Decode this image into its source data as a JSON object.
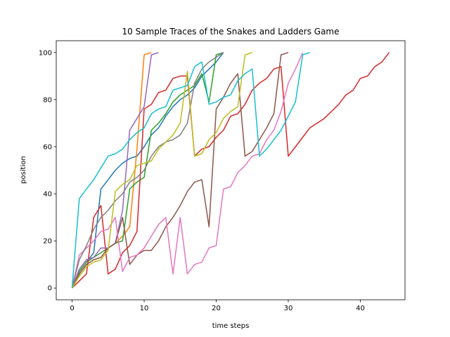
{
  "chart_data": {
    "type": "line",
    "title": "10 Sample Traces of the Snakes and Ladders Game",
    "xlabel": "time steps",
    "ylabel": "position",
    "xlim": [
      -2.2,
      46.2
    ],
    "ylim": [
      -5,
      105
    ],
    "xticks": [
      0,
      10,
      20,
      30,
      40
    ],
    "yticks": [
      0,
      20,
      40,
      60,
      80,
      100
    ],
    "grid": false,
    "legend": "none",
    "series": [
      {
        "color": "#1f77b4",
        "values": [
          0,
          7,
          11,
          15,
          42,
          46,
          50,
          53,
          55,
          56,
          60,
          65,
          68,
          73,
          77,
          80,
          82,
          85,
          90,
          93,
          96,
          100
        ]
      },
      {
        "color": "#ff7f0e",
        "values": [
          0,
          6,
          10,
          12,
          13,
          17,
          19,
          22,
          26,
          59,
          99,
          100
        ]
      },
      {
        "color": "#2ca02c",
        "values": [
          0,
          7,
          11,
          13,
          15,
          17,
          19,
          20,
          42,
          45,
          47,
          67,
          70,
          74,
          79,
          82,
          84,
          86,
          91,
          79,
          99,
          100
        ]
      },
      {
        "color": "#d62728",
        "values": [
          0,
          3,
          6,
          30,
          35,
          6,
          8,
          15,
          18,
          24,
          76,
          78,
          83,
          84,
          89,
          90,
          90,
          56,
          59,
          60,
          64,
          67,
          73,
          74,
          78,
          84,
          87,
          89,
          93,
          94,
          56,
          60,
          64,
          68,
          70,
          72,
          75,
          78,
          82,
          84,
          89,
          90,
          94,
          96,
          100
        ]
      },
      {
        "color": "#9467bd",
        "values": [
          0,
          8,
          12,
          13,
          17,
          17,
          19,
          33,
          67,
          72,
          77,
          99,
          100
        ]
      },
      {
        "color": "#8c564b",
        "values": [
          0,
          6,
          10,
          12,
          13,
          17,
          19,
          30,
          10,
          14,
          16,
          16,
          20,
          26,
          30,
          35,
          41,
          45,
          46,
          26,
          76,
          81,
          87,
          91,
          56,
          58,
          63,
          68,
          74,
          99,
          100
        ]
      },
      {
        "color": "#e377c2",
        "values": [
          0,
          14,
          17,
          20,
          24,
          25,
          30,
          7,
          13,
          14,
          17,
          22,
          27,
          30,
          6,
          30,
          6,
          10,
          11,
          17,
          18,
          42,
          43,
          49,
          52,
          56,
          57,
          63,
          67,
          75,
          87,
          93,
          100
        ]
      },
      {
        "color": "#7f7f7f",
        "values": [
          0,
          12,
          18,
          25,
          30,
          33,
          37,
          40,
          45,
          47,
          50,
          56,
          60,
          62,
          63,
          65,
          70,
          87,
          93,
          96,
          98,
          100
        ]
      },
      {
        "color": "#bcbd22",
        "values": [
          0,
          5,
          9,
          11,
          12,
          16,
          41,
          44,
          46,
          52,
          53,
          54,
          59,
          62,
          65,
          70,
          92,
          56,
          57,
          63,
          66,
          72,
          75,
          77,
          99,
          100
        ]
      },
      {
        "color": "#17becf",
        "values": [
          0,
          38,
          42,
          46,
          51,
          56,
          57,
          59,
          63,
          66,
          68,
          74,
          76,
          77,
          84,
          85,
          86,
          94,
          96,
          78,
          79,
          81,
          82,
          88,
          91,
          93,
          56,
          59,
          63,
          67,
          73,
          79,
          99,
          100
        ]
      }
    ]
  }
}
